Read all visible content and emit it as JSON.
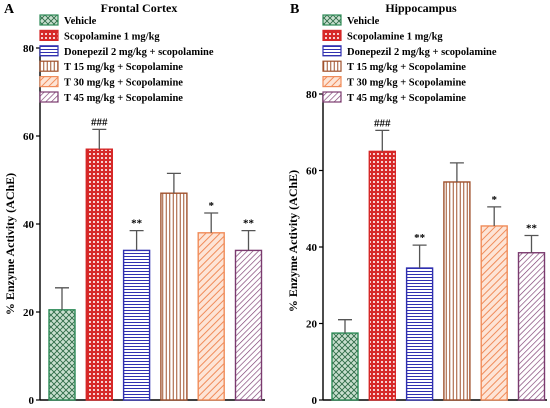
{
  "chart_data": [
    {
      "panel": "A",
      "type": "bar",
      "title": "Frontal Cortex",
      "ylabel": "% Enzyme Activity (AChE)",
      "xlabel": "",
      "ylim": [
        0,
        80
      ],
      "yticks": [
        0,
        20,
        40,
        60,
        80
      ],
      "grid": false,
      "legend_position": "top-right",
      "categories": [
        "Vehicle",
        "Scopolamine 1 mg/kg",
        "Donepezil 2 mg/kg + scopolamine",
        "T 15 mg/kg + Scopolamine",
        "T 30 mg/kg + Scopolamine",
        "T 45 mg/kg + Scopolamine"
      ],
      "values": [
        20.5,
        57,
        34,
        47,
        38,
        34
      ],
      "errors": [
        5,
        4.5,
        4.5,
        4.5,
        4.5,
        4.5
      ],
      "annotations": [
        "",
        "###",
        "**",
        "",
        "*",
        "**"
      ],
      "colors": [
        "#2e8b57",
        "#d62828",
        "#3030b0",
        "#a0522d",
        "#f08c5a",
        "#7b3b6f"
      ],
      "patterns": [
        "crosshatch",
        "dots",
        "horizontal",
        "vertical",
        "diagonal",
        "diagonal-dense"
      ]
    },
    {
      "panel": "B",
      "type": "bar",
      "title": "Hippocampus",
      "ylabel": "% Enzyme Activity (AChE)",
      "xlabel": "",
      "ylim": [
        0,
        80
      ],
      "yticks": [
        0,
        20,
        40,
        60,
        80
      ],
      "grid": false,
      "legend_position": "top-right",
      "categories": [
        "Vehicle",
        "Scopolamine 1 mg/kg",
        "Donepezil 2 mg/kg + scopolamine",
        "T 15 mg/kg + Scopolamine",
        "T 30 mg/kg + Scopolamine",
        "T 45 mg/kg + Scopolamine"
      ],
      "values": [
        17.5,
        65,
        34.5,
        57,
        45.5,
        38.5
      ],
      "errors": [
        3.5,
        5.5,
        6,
        5,
        5,
        4.5
      ],
      "annotations": [
        "",
        "###",
        "**",
        "",
        "*",
        "**"
      ],
      "colors": [
        "#2e8b57",
        "#d62828",
        "#3030b0",
        "#a0522d",
        "#f08c5a",
        "#7b3b6f"
      ],
      "patterns": [
        "crosshatch",
        "dots",
        "horizontal",
        "vertical",
        "diagonal",
        "diagonal-dense"
      ]
    }
  ]
}
